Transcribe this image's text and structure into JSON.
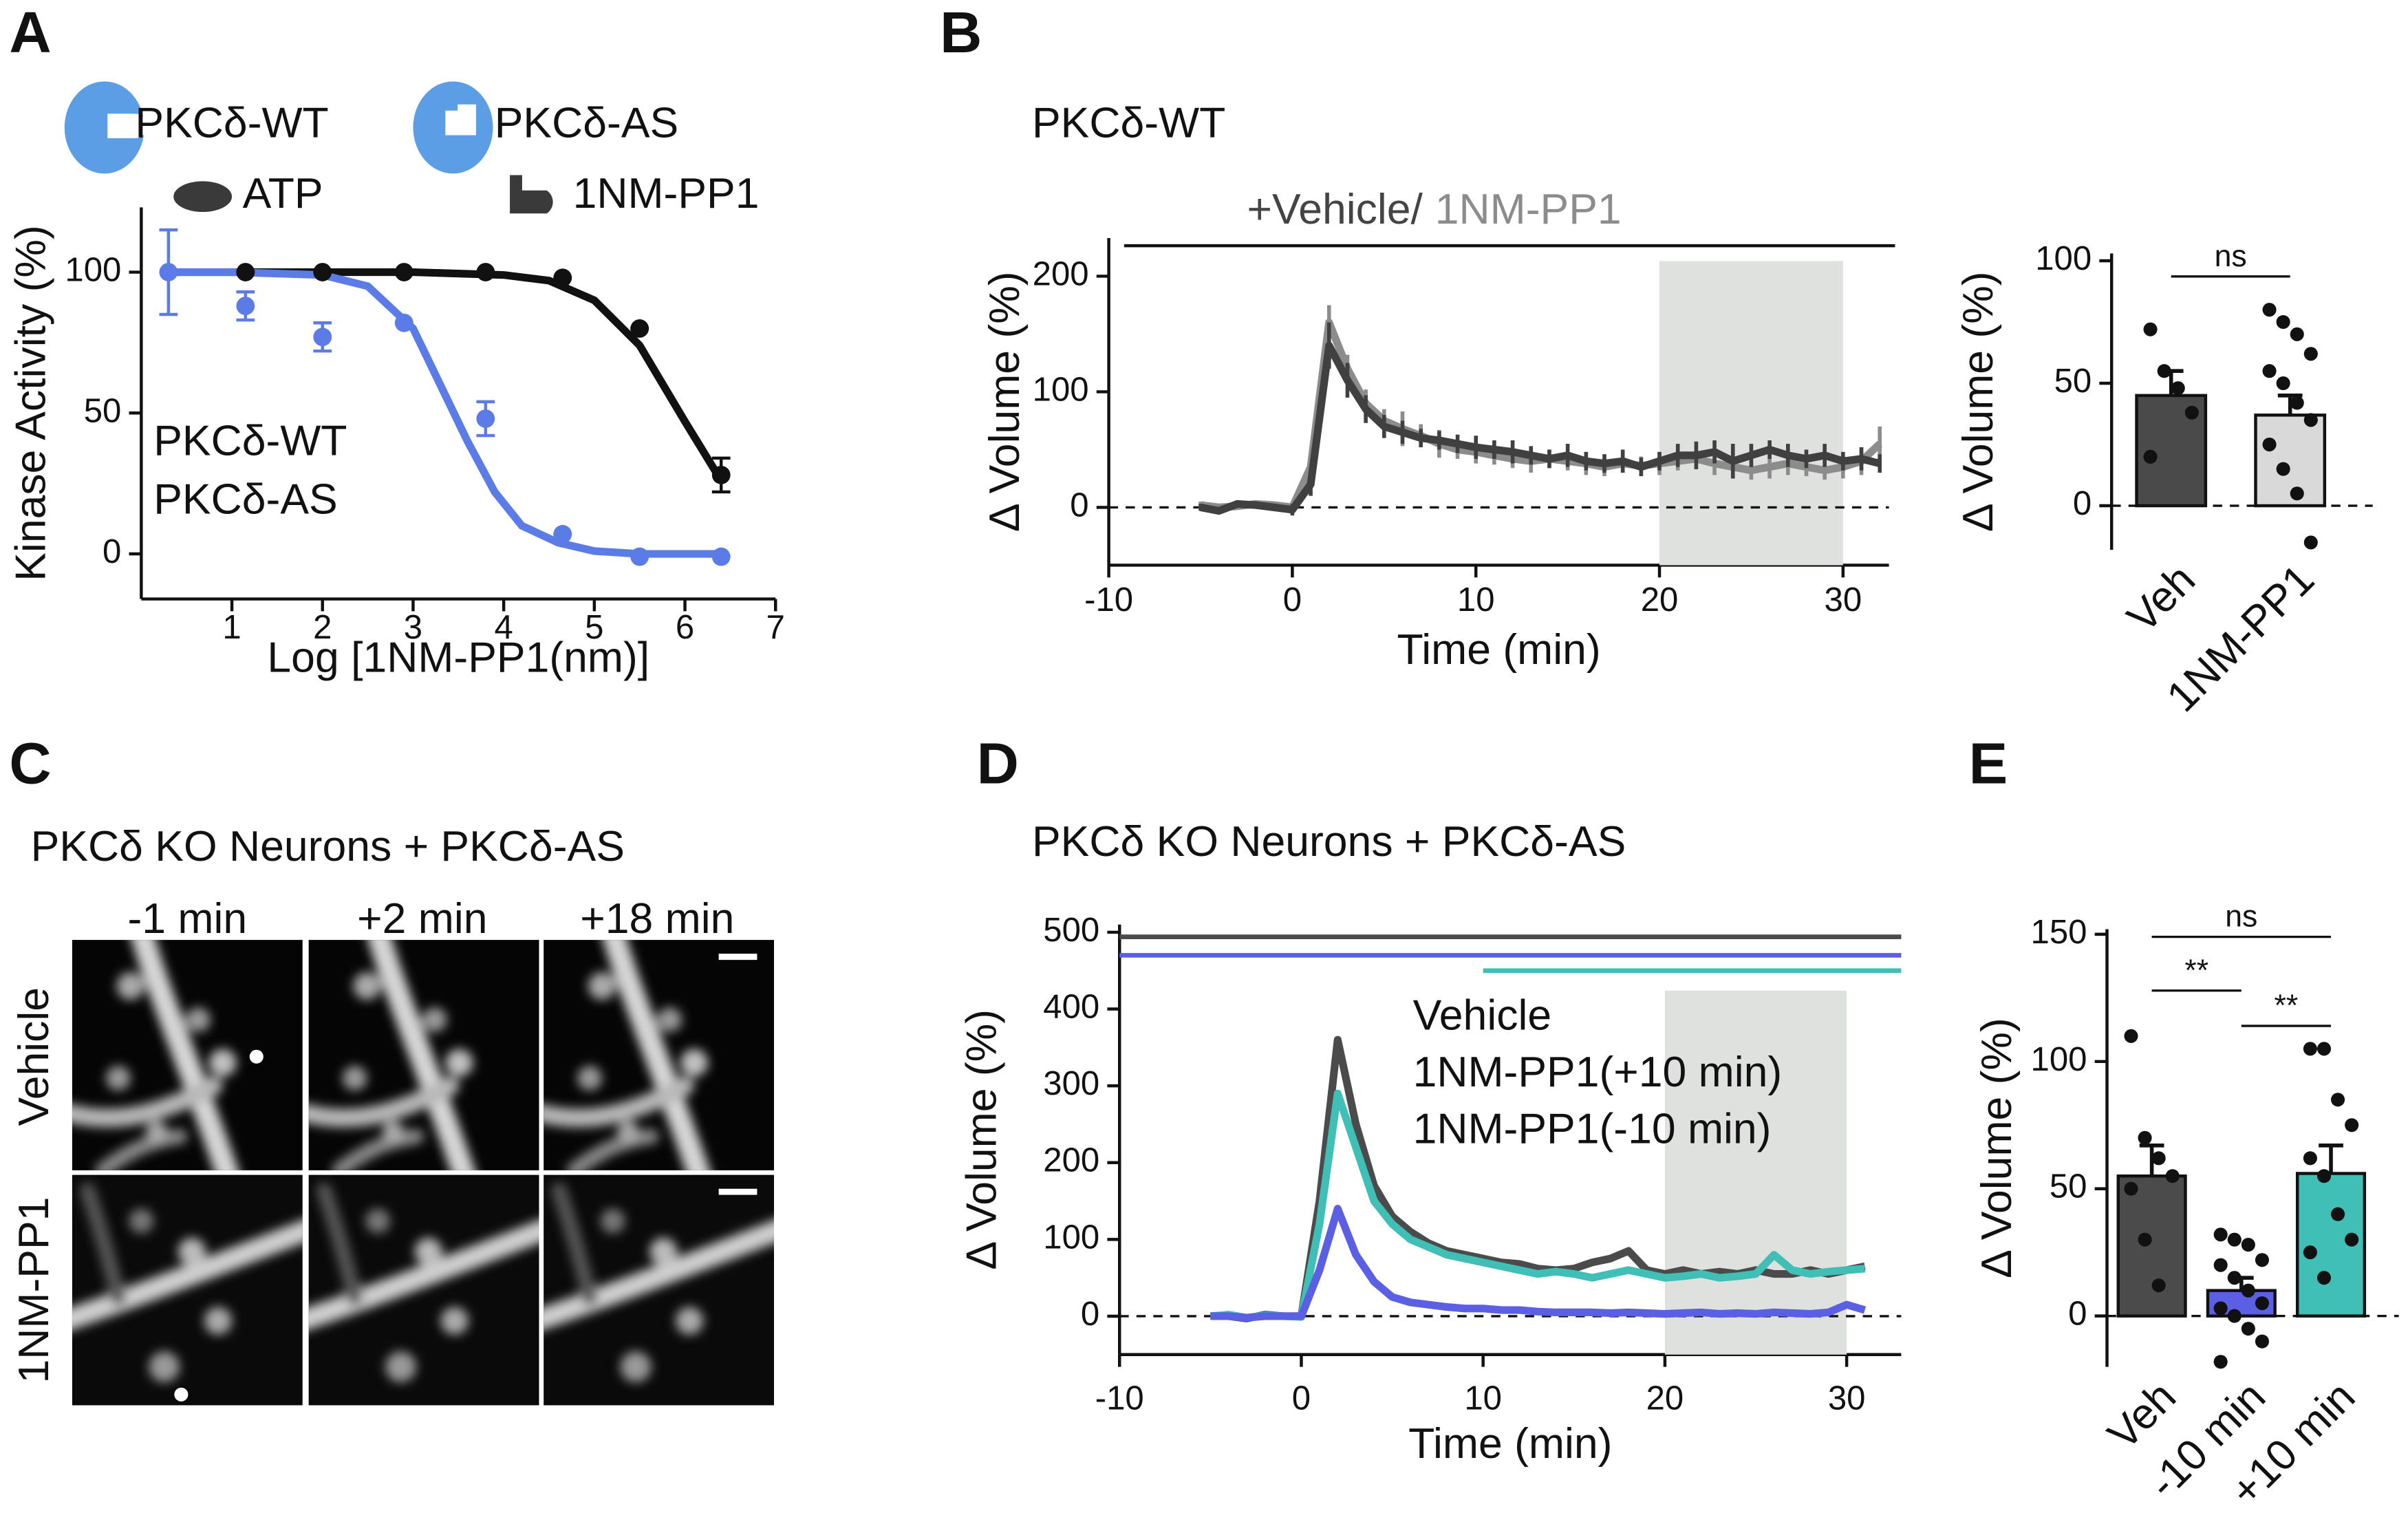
{
  "panel_labels": [
    "A",
    "B",
    "C",
    "D",
    "E"
  ],
  "panel_c": {
    "title": "PKCδ KO Neurons + PKCδ-AS",
    "columns": [
      "-1 min",
      "+2 min",
      "+18 min"
    ],
    "rows": [
      "Vehicle",
      "1NM-PP1"
    ]
  },
  "chart_data": [
    {
      "type": "scatter",
      "key_labels": [
        "PKCδ-WT",
        "PKCδ-AS",
        "ATP",
        "1NM-PP1"
      ],
      "xlabel": "Log [1NM-PP1(nm)]",
      "ylabel": "Kinase Activity (%)",
      "xlim": [
        0,
        7
      ],
      "ylim": [
        -16,
        123
      ],
      "xticks": [
        1,
        2,
        3,
        4,
        5,
        6,
        7
      ],
      "yticks": [
        0,
        50,
        100
      ],
      "series": [
        {
          "name": "PKCδ-WT",
          "color": "#111111",
          "x": [
            1.15,
            2.0,
            2.9,
            3.8,
            4.65,
            5.5,
            6.4
          ],
          "values": [
            100,
            100,
            100,
            100,
            98,
            80,
            28
          ],
          "errors": [
            0,
            0,
            0,
            0,
            0,
            0,
            6
          ],
          "fit_x": [
            0.25,
            1,
            2,
            3,
            4,
            4.5,
            5,
            5.5,
            6,
            6.4
          ],
          "fit_values": [
            100,
            100,
            100,
            100,
            99,
            97,
            90,
            74,
            47,
            26
          ]
        },
        {
          "name": "PKCδ-AS",
          "color": "#5b7be6",
          "x": [
            0.3,
            1.15,
            2.0,
            2.9,
            3.8,
            4.65,
            5.5,
            6.4
          ],
          "values": [
            100,
            88,
            77,
            82,
            48,
            7,
            -1,
            -1
          ],
          "errors": [
            15,
            5,
            5,
            0,
            6,
            0,
            0,
            0
          ],
          "fit_x": [
            0.25,
            1,
            2,
            2.5,
            3,
            3.3,
            3.6,
            3.9,
            4.2,
            4.6,
            5,
            5.5,
            6.4
          ],
          "fit_values": [
            100,
            100,
            99,
            95,
            80,
            60,
            40,
            22,
            10,
            4,
            1,
            0,
            0
          ]
        }
      ]
    },
    {
      "type": "line",
      "title": "PKCδ-WT",
      "annotation": "+Vehicle/",
      "xlabel": "Time (min)",
      "ylabel": "Δ Volume (%)",
      "xlim": [
        -10,
        32.5
      ],
      "ylim": [
        -50,
        233
      ],
      "xticks": [
        -10,
        0,
        10,
        20,
        30
      ],
      "yticks": [
        0,
        100,
        200
      ],
      "shade": [
        20,
        30
      ],
      "x": [
        -5,
        -4,
        -3,
        -2,
        -1,
        0,
        1,
        2,
        3,
        4,
        5,
        6,
        7,
        8,
        9,
        10,
        11,
        12,
        13,
        14,
        15,
        16,
        17,
        18,
        19,
        20,
        21,
        22,
        23,
        24,
        25,
        26,
        27,
        28,
        29,
        30,
        31,
        32
      ],
      "series": [
        {
          "color": "#8c8c8c",
          "name": "1NM-PP1",
          "values": [
            2,
            0,
            1,
            3,
            2,
            0,
            35,
            160,
            120,
            90,
            75,
            68,
            62,
            55,
            50,
            48,
            45,
            42,
            40,
            42,
            40,
            38,
            35,
            38,
            36,
            38,
            40,
            42,
            38,
            35,
            32,
            35,
            38,
            35,
            32,
            35,
            40,
            55
          ],
          "errors": [
            3,
            3,
            3,
            3,
            3,
            5,
            10,
            15,
            12,
            12,
            10,
            15,
            10,
            12,
            8,
            10,
            8,
            8,
            10,
            8,
            8,
            10,
            8,
            8,
            8,
            10,
            8,
            8,
            10,
            8,
            8,
            10,
            10,
            8,
            8,
            10,
            12,
            15
          ]
        },
        {
          "color": "#404040",
          "values": [
            0,
            -3,
            3,
            2,
            0,
            -2,
            20,
            140,
            110,
            85,
            70,
            65,
            60,
            58,
            55,
            52,
            50,
            48,
            45,
            42,
            45,
            40,
            38,
            40,
            35,
            40,
            45,
            45,
            48,
            40,
            45,
            50,
            45,
            42,
            45,
            40,
            42,
            38
          ],
          "errors": [
            3,
            3,
            3,
            3,
            3,
            5,
            10,
            20,
            15,
            12,
            10,
            10,
            8,
            8,
            8,
            10,
            8,
            10,
            8,
            8,
            10,
            8,
            8,
            10,
            8,
            8,
            10,
            12,
            10,
            15,
            10,
            8,
            10,
            8,
            10,
            8,
            10,
            8
          ]
        }
      ]
    },
    {
      "type": "bar",
      "ylabel": "Δ Volume (%)",
      "categories": [
        "Veh",
        "1NM-PP1"
      ],
      "values": [
        45,
        37
      ],
      "errors": [
        10,
        8
      ],
      "colors": [
        "#4a4a4a",
        "#d9d9d9"
      ],
      "ylim": [
        -18,
        103
      ],
      "yticks": [
        0,
        50,
        100
      ],
      "significance": [
        "ns"
      ],
      "points": [
        [
          72,
          55,
          48,
          38,
          20
        ],
        [
          80,
          75,
          70,
          62,
          55,
          50,
          42,
          35,
          25,
          15,
          5,
          -15
        ]
      ]
    },
    {
      "type": "line",
      "title": "PKCδ KO Neurons + PKCδ-AS",
      "xlabel": "Time (min)",
      "ylabel": "Δ Volume (%)",
      "xlim": [
        -10,
        33
      ],
      "ylim": [
        -50,
        510
      ],
      "xticks": [
        -10,
        0,
        10,
        20,
        30
      ],
      "yticks": [
        0,
        100,
        200,
        300,
        400,
        500
      ],
      "shade": [
        20,
        30
      ],
      "x": [
        -5,
        -4,
        -3,
        -2,
        -1,
        0,
        1,
        2,
        3,
        4,
        5,
        6,
        7,
        8,
        9,
        10,
        11,
        12,
        13,
        14,
        15,
        16,
        17,
        18,
        19,
        20,
        21,
        22,
        23,
        24,
        25,
        26,
        27,
        28,
        29,
        30,
        31
      ],
      "series": [
        {
          "name": "Vehicle",
          "color": "#4b4b4b",
          "start": -10,
          "values": [
            0,
            0,
            -3,
            2,
            0,
            0,
            150,
            360,
            250,
            170,
            130,
            110,
            95,
            85,
            80,
            75,
            70,
            68,
            62,
            60,
            62,
            70,
            75,
            85,
            60,
            55,
            60,
            55,
            58,
            55,
            60,
            55,
            55,
            60,
            55,
            60,
            65
          ]
        },
        {
          "name": "1NM-PP1(+10 min)",
          "color": "#3fbfb6",
          "start": 10,
          "values": [
            0,
            2,
            -2,
            1,
            0,
            -1,
            120,
            290,
            220,
            150,
            120,
            100,
            90,
            80,
            75,
            70,
            65,
            60,
            55,
            58,
            55,
            50,
            55,
            60,
            55,
            50,
            52,
            55,
            50,
            52,
            55,
            80,
            60,
            55,
            58,
            60,
            62
          ]
        },
        {
          "name": "1NM-PP1(-10 min)",
          "color": "#5a5fe3",
          "start": -10,
          "values": [
            0,
            0,
            -2,
            0,
            0,
            0,
            60,
            140,
            80,
            45,
            25,
            18,
            15,
            12,
            10,
            10,
            8,
            8,
            6,
            5,
            5,
            5,
            4,
            5,
            4,
            3,
            4,
            5,
            3,
            4,
            3,
            5,
            4,
            3,
            5,
            15,
            8
          ]
        }
      ]
    },
    {
      "type": "bar",
      "ylabel": "Δ Volume (%)",
      "categories": [
        "Veh",
        "-10 min",
        "+10 min"
      ],
      "values": [
        55,
        10,
        56
      ],
      "errors": [
        12,
        5,
        11
      ],
      "colors": [
        "#4b4b4b",
        "#5a5fe3",
        "#3fbfb6"
      ],
      "ylim": [
        -20,
        152
      ],
      "yticks": [
        0,
        50,
        100,
        150
      ],
      "significance": [
        "ns",
        "**",
        "**"
      ],
      "points": [
        [
          110,
          70,
          62,
          55,
          50,
          30,
          12
        ],
        [
          32,
          30,
          28,
          22,
          20,
          15,
          10,
          5,
          3,
          0,
          -5,
          -10,
          -18
        ],
        [
          105,
          105,
          85,
          75,
          62,
          55,
          40,
          30,
          25,
          15
        ]
      ]
    }
  ]
}
